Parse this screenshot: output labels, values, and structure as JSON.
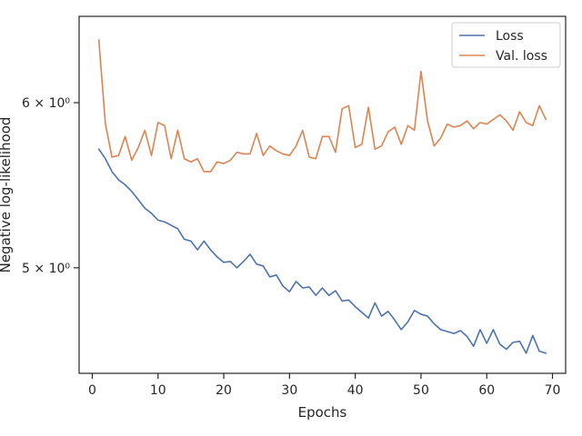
{
  "chart_data": {
    "type": "line",
    "xlabel": "Epochs",
    "ylabel": "Negative log-likelihood",
    "xlim": [
      -2,
      72
    ],
    "ylim": [
      4.45,
      6.6
    ],
    "y_scale": "log",
    "grid": false,
    "legend_position": "top-right",
    "x_ticks": [
      0,
      10,
      20,
      30,
      40,
      50,
      60,
      70
    ],
    "x_tick_labels": [
      "0",
      "10",
      "20",
      "30",
      "40",
      "50",
      "60",
      "70"
    ],
    "y_ticks": [
      5,
      6
    ],
    "y_tick_labels": [
      "5 × 10⁰",
      "6 × 10⁰"
    ],
    "series": [
      {
        "name": "Loss",
        "color": "#4c72b0",
        "x": [
          1,
          2,
          3,
          4,
          5,
          6,
          7,
          8,
          9,
          10,
          11,
          12,
          13,
          14,
          15,
          16,
          17,
          18,
          19,
          20,
          21,
          22,
          23,
          24,
          25,
          26,
          27,
          28,
          29,
          30,
          31,
          32,
          33,
          34,
          35,
          36,
          37,
          38,
          39,
          40,
          41,
          42,
          43,
          44,
          45,
          46,
          47,
          48,
          49,
          50,
          51,
          52,
          53,
          54,
          55,
          56,
          57,
          58,
          59,
          60,
          61,
          62,
          63,
          64,
          65,
          66,
          67,
          68,
          69
        ],
        "y": [
          5.7,
          5.64,
          5.56,
          5.51,
          5.48,
          5.44,
          5.39,
          5.34,
          5.31,
          5.27,
          5.26,
          5.24,
          5.22,
          5.16,
          5.15,
          5.1,
          5.15,
          5.1,
          5.06,
          5.03,
          5.035,
          5.0,
          5.035,
          5.075,
          5.02,
          5.01,
          4.95,
          4.96,
          4.9,
          4.87,
          4.925,
          4.89,
          4.895,
          4.85,
          4.89,
          4.85,
          4.875,
          4.82,
          4.825,
          4.79,
          4.76,
          4.73,
          4.81,
          4.74,
          4.765,
          4.72,
          4.67,
          4.71,
          4.77,
          4.75,
          4.74,
          4.7,
          4.67,
          4.66,
          4.65,
          4.665,
          4.635,
          4.585,
          4.67,
          4.6,
          4.67,
          4.595,
          4.57,
          4.605,
          4.61,
          4.55,
          4.64,
          4.56,
          4.55
        ]
      },
      {
        "name": "Val. loss",
        "color": "#dd8452",
        "x": [
          1,
          2,
          3,
          4,
          5,
          6,
          7,
          8,
          9,
          10,
          11,
          12,
          13,
          14,
          15,
          16,
          17,
          18,
          19,
          20,
          21,
          22,
          23,
          24,
          25,
          26,
          27,
          28,
          29,
          30,
          31,
          32,
          33,
          34,
          35,
          36,
          37,
          38,
          39,
          40,
          41,
          42,
          43,
          44,
          45,
          46,
          47,
          48,
          49,
          50,
          51,
          52,
          53,
          54,
          55,
          56,
          57,
          58,
          59,
          60,
          61,
          62,
          63,
          64,
          65,
          66,
          67,
          68,
          69
        ],
        "y": [
          6.43,
          5.86,
          5.65,
          5.66,
          5.78,
          5.63,
          5.71,
          5.82,
          5.66,
          5.87,
          5.85,
          5.64,
          5.82,
          5.64,
          5.62,
          5.64,
          5.56,
          5.56,
          5.62,
          5.61,
          5.63,
          5.68,
          5.67,
          5.67,
          5.8,
          5.66,
          5.72,
          5.69,
          5.67,
          5.66,
          5.72,
          5.82,
          5.65,
          5.64,
          5.78,
          5.78,
          5.68,
          5.96,
          5.98,
          5.71,
          5.73,
          5.97,
          5.7,
          5.72,
          5.81,
          5.84,
          5.73,
          5.85,
          5.82,
          6.21,
          5.88,
          5.72,
          5.77,
          5.86,
          5.84,
          5.85,
          5.88,
          5.83,
          5.87,
          5.86,
          5.89,
          5.92,
          5.88,
          5.82,
          5.94,
          5.87,
          5.85,
          5.98,
          5.89
        ]
      }
    ]
  }
}
